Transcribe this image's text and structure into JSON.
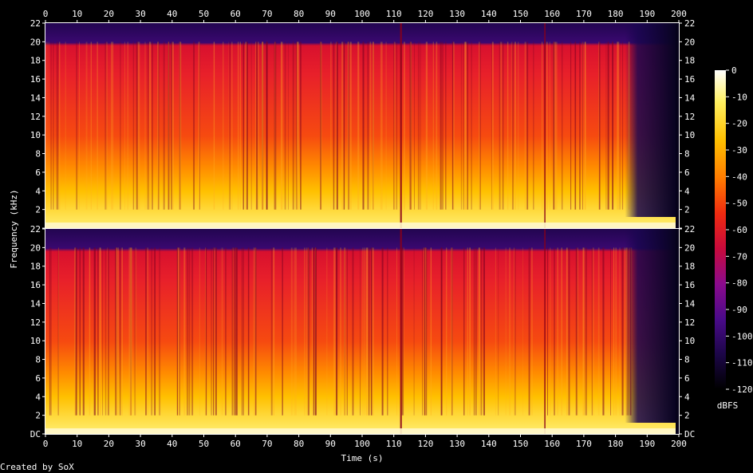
{
  "chart_data": {
    "type": "heatmap",
    "xlabel": "Time (s)",
    "ylabel": "Frequency (kHz)",
    "xlim": [
      0,
      200
    ],
    "ylim": [
      0,
      22
    ],
    "x_ticks": [
      "0",
      "10",
      "20",
      "30",
      "40",
      "50",
      "60",
      "70",
      "80",
      "90",
      "100",
      "110",
      "120",
      "130",
      "140",
      "150",
      "160",
      "170",
      "180",
      "190",
      "200"
    ],
    "y_ticks": [
      "DC",
      "2",
      "4",
      "6",
      "8",
      "10",
      "12",
      "14",
      "16",
      "18",
      "20",
      "22"
    ],
    "channels": 2,
    "colorbar": {
      "label": "dBFS",
      "range": [
        -120,
        0
      ],
      "ticks": [
        "0",
        "-10",
        "-20",
        "-30",
        "-40",
        "-50",
        "-60",
        "-70",
        "-80",
        "-90",
        "-100",
        "-110",
        "-120"
      ],
      "colors": [
        "#000000",
        "#1c0648",
        "#4a0a8a",
        "#8b0a8c",
        "#c80a3c",
        "#f02a10",
        "#ff7a00",
        "#ffc000",
        "#fff060",
        "#ffffff"
      ]
    },
    "spectral_rolloff_khz": 20,
    "fade_out_start_s": 185,
    "content_end_s": 199
  },
  "credit": "Created by SoX"
}
